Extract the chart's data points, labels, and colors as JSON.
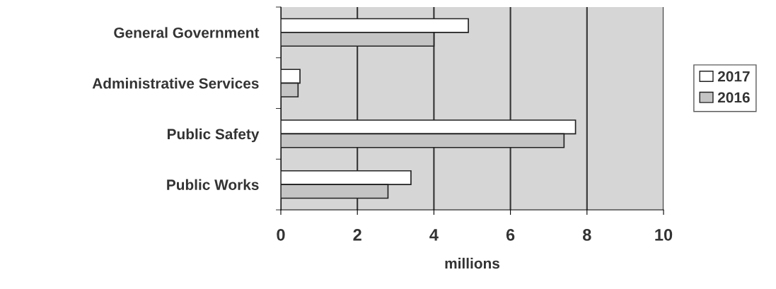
{
  "chart_data": {
    "type": "bar",
    "orientation": "horizontal",
    "xlabel": "millions",
    "categories": [
      "General Government",
      "Administrative Services",
      "Public Safety",
      "Public Works"
    ],
    "series": [
      {
        "name": "2017",
        "color": "#ffffff",
        "values": [
          4.9,
          0.5,
          7.7,
          3.4
        ]
      },
      {
        "name": "2016",
        "color": "#c4c4c4",
        "values": [
          4.0,
          0.45,
          7.4,
          2.8
        ]
      }
    ],
    "xlim": [
      0,
      10
    ],
    "xticks": [
      0,
      2,
      4,
      6,
      8,
      10
    ],
    "grid": "x",
    "legend": "right"
  }
}
